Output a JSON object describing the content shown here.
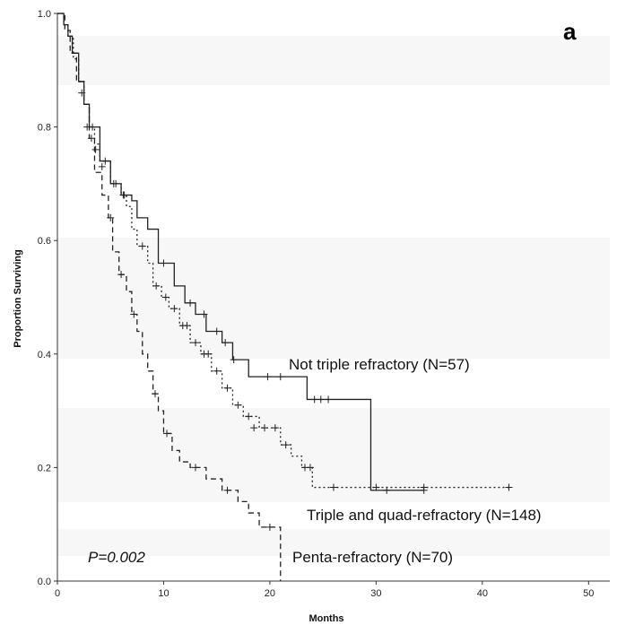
{
  "chart_data": {
    "type": "line",
    "subtype": "kaplan-meier",
    "panel_label": "a",
    "xlabel": "Months",
    "ylabel": "Proportion Surviving",
    "xlim": [
      0,
      52
    ],
    "ylim": [
      0,
      1.0
    ],
    "x_ticks": [
      0,
      10,
      20,
      30,
      40,
      50
    ],
    "x_tick_labels": [
      "0",
      "10",
      "20",
      "30",
      "40",
      "50"
    ],
    "y_ticks": [
      0,
      0.2,
      0.4,
      0.6,
      0.8,
      1.0
    ],
    "y_tick_labels": [
      "0.0",
      "0.2",
      "0.4",
      "0.6",
      "0.8",
      "1.0"
    ],
    "grid": false,
    "annotation": "P=0.002",
    "series": [
      {
        "name": "Not triple refractory (N=57)",
        "line_style": "solid",
        "steps": [
          [
            0,
            1.0
          ],
          [
            0.3,
            1.0
          ],
          [
            0.6,
            0.98
          ],
          [
            1.0,
            0.96
          ],
          [
            1.4,
            0.93
          ],
          [
            2.0,
            0.88
          ],
          [
            2.5,
            0.84
          ],
          [
            3.0,
            0.8
          ],
          [
            4.0,
            0.74
          ],
          [
            5.0,
            0.7
          ],
          [
            6.0,
            0.68
          ],
          [
            7.0,
            0.67
          ],
          [
            7.5,
            0.64
          ],
          [
            8.5,
            0.62
          ],
          [
            9.5,
            0.56
          ],
          [
            11.0,
            0.52
          ],
          [
            12.0,
            0.49
          ],
          [
            13.0,
            0.47
          ],
          [
            14.0,
            0.44
          ],
          [
            15.5,
            0.42
          ],
          [
            16.5,
            0.39
          ],
          [
            18.0,
            0.36
          ],
          [
            23.5,
            0.32
          ],
          [
            29.5,
            0.16
          ],
          [
            34.5,
            0.16
          ]
        ],
        "censored": [
          [
            2.8,
            0.8
          ],
          [
            3.6,
            0.76
          ],
          [
            4.2,
            0.73
          ],
          [
            5.3,
            0.7
          ],
          [
            6.2,
            0.68
          ],
          [
            10.0,
            0.56
          ],
          [
            12.5,
            0.49
          ],
          [
            13.8,
            0.47
          ],
          [
            15.0,
            0.44
          ],
          [
            15.8,
            0.42
          ],
          [
            16.6,
            0.39
          ],
          [
            19.8,
            0.36
          ],
          [
            21.0,
            0.36
          ],
          [
            24.2,
            0.32
          ],
          [
            24.8,
            0.32
          ],
          [
            25.5,
            0.32
          ],
          [
            31.0,
            0.16
          ],
          [
            34.5,
            0.16
          ]
        ]
      },
      {
        "name": "Triple and quad-refractory (N=148)",
        "line_style": "dotted",
        "steps": [
          [
            0,
            1.0
          ],
          [
            0.3,
            1.0
          ],
          [
            0.6,
            0.98
          ],
          [
            1.0,
            0.96
          ],
          [
            1.5,
            0.92
          ],
          [
            2.0,
            0.88
          ],
          [
            2.5,
            0.84
          ],
          [
            3.0,
            0.8
          ],
          [
            3.5,
            0.77
          ],
          [
            4.0,
            0.74
          ],
          [
            5.0,
            0.7
          ],
          [
            6.0,
            0.68
          ],
          [
            6.5,
            0.66
          ],
          [
            7.0,
            0.62
          ],
          [
            7.5,
            0.59
          ],
          [
            8.5,
            0.56
          ],
          [
            9.0,
            0.52
          ],
          [
            9.8,
            0.5
          ],
          [
            10.5,
            0.48
          ],
          [
            11.5,
            0.45
          ],
          [
            12.5,
            0.42
          ],
          [
            13.5,
            0.4
          ],
          [
            14.5,
            0.37
          ],
          [
            15.5,
            0.34
          ],
          [
            16.5,
            0.31
          ],
          [
            17.5,
            0.29
          ],
          [
            19.0,
            0.27
          ],
          [
            21.0,
            0.24
          ],
          [
            22.0,
            0.22
          ],
          [
            23.0,
            0.2
          ],
          [
            24.0,
            0.165
          ],
          [
            42.5,
            0.165
          ]
        ],
        "censored": [
          [
            3.3,
            0.8
          ],
          [
            4.5,
            0.74
          ],
          [
            5.5,
            0.7
          ],
          [
            6.3,
            0.68
          ],
          [
            8.0,
            0.59
          ],
          [
            9.3,
            0.52
          ],
          [
            10.2,
            0.5
          ],
          [
            11.0,
            0.48
          ],
          [
            11.8,
            0.45
          ],
          [
            12.2,
            0.45
          ],
          [
            13.0,
            0.42
          ],
          [
            13.8,
            0.4
          ],
          [
            14.2,
            0.4
          ],
          [
            15.0,
            0.37
          ],
          [
            16.0,
            0.34
          ],
          [
            17.0,
            0.31
          ],
          [
            18.0,
            0.29
          ],
          [
            18.5,
            0.27
          ],
          [
            19.5,
            0.27
          ],
          [
            20.5,
            0.27
          ],
          [
            21.5,
            0.24
          ],
          [
            23.3,
            0.2
          ],
          [
            23.8,
            0.2
          ],
          [
            26.0,
            0.165
          ],
          [
            30.0,
            0.165
          ],
          [
            34.5,
            0.165
          ],
          [
            42.5,
            0.165
          ]
        ]
      },
      {
        "name": "Penta-refractory (N=70)",
        "line_style": "dashed",
        "steps": [
          [
            0,
            1.0
          ],
          [
            0.3,
            1.0
          ],
          [
            0.7,
            0.97
          ],
          [
            1.2,
            0.93
          ],
          [
            1.8,
            0.88
          ],
          [
            2.5,
            0.84
          ],
          [
            3.0,
            0.78
          ],
          [
            3.5,
            0.72
          ],
          [
            4.2,
            0.68
          ],
          [
            4.8,
            0.64
          ],
          [
            5.2,
            0.58
          ],
          [
            5.8,
            0.54
          ],
          [
            6.5,
            0.51
          ],
          [
            7.0,
            0.47
          ],
          [
            7.5,
            0.44
          ],
          [
            8.0,
            0.4
          ],
          [
            8.5,
            0.37
          ],
          [
            9.0,
            0.33
          ],
          [
            9.5,
            0.3
          ],
          [
            10.0,
            0.26
          ],
          [
            10.8,
            0.23
          ],
          [
            11.5,
            0.21
          ],
          [
            12.5,
            0.2
          ],
          [
            14.0,
            0.18
          ],
          [
            15.5,
            0.16
          ],
          [
            17.0,
            0.14
          ],
          [
            18.0,
            0.12
          ],
          [
            19.0,
            0.095
          ],
          [
            21.0,
            0.0
          ]
        ],
        "censored": [
          [
            2.3,
            0.86
          ],
          [
            3.2,
            0.78
          ],
          [
            5.0,
            0.64
          ],
          [
            6.0,
            0.54
          ],
          [
            7.2,
            0.47
          ],
          [
            9.2,
            0.33
          ],
          [
            10.3,
            0.26
          ],
          [
            13.0,
            0.2
          ],
          [
            16.0,
            0.16
          ],
          [
            20.0,
            0.095
          ]
        ]
      }
    ]
  }
}
